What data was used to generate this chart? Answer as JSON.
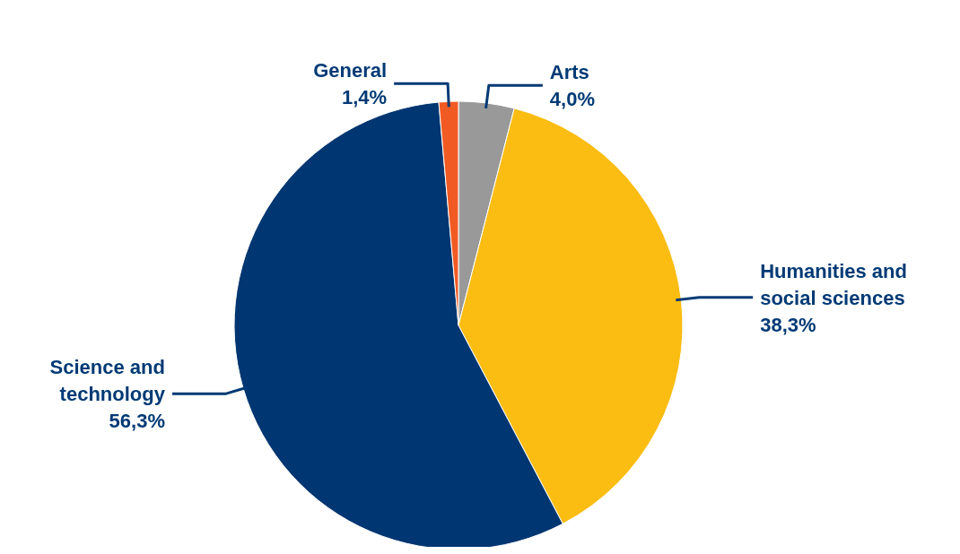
{
  "chart_data": {
    "type": "pie",
    "categories": [
      "Arts",
      "Humanities and social sciences",
      "Science and technology",
      "General"
    ],
    "values": [
      4.0,
      38.3,
      56.3,
      1.4
    ],
    "colors": [
      "#999999",
      "#fbbd12",
      "#003671",
      "#f15a22"
    ],
    "value_labels": [
      "4,0%",
      "38,3%",
      "56,3%",
      "1,4%"
    ]
  }
}
